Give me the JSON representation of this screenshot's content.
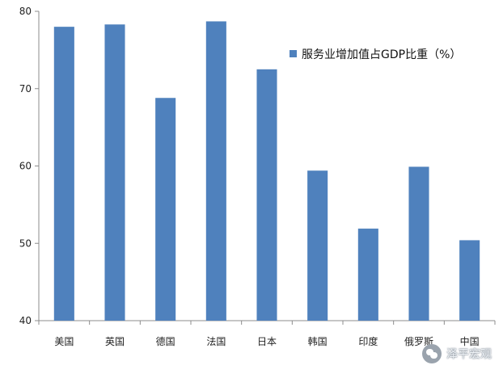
{
  "chart_data": {
    "type": "bar",
    "title": "",
    "xlabel": "",
    "ylabel": "",
    "categories": [
      "美国",
      "英国",
      "德国",
      "法国",
      "日本",
      "韩国",
      "印度",
      "俄罗斯",
      "中国"
    ],
    "series": [
      {
        "name": "服务业增加值占GDP比重（%）",
        "values": [
          78.0,
          78.3,
          68.8,
          78.7,
          72.5,
          59.4,
          51.9,
          59.9,
          50.4
        ],
        "color": "#4F81BD"
      }
    ],
    "ylim": [
      40,
      80
    ],
    "yticks": [
      40,
      50,
      60,
      70,
      80
    ],
    "grid": false,
    "legend_position": "top-right"
  },
  "watermark": {
    "icon": "wechat-icon",
    "text": "泽平宏观"
  }
}
